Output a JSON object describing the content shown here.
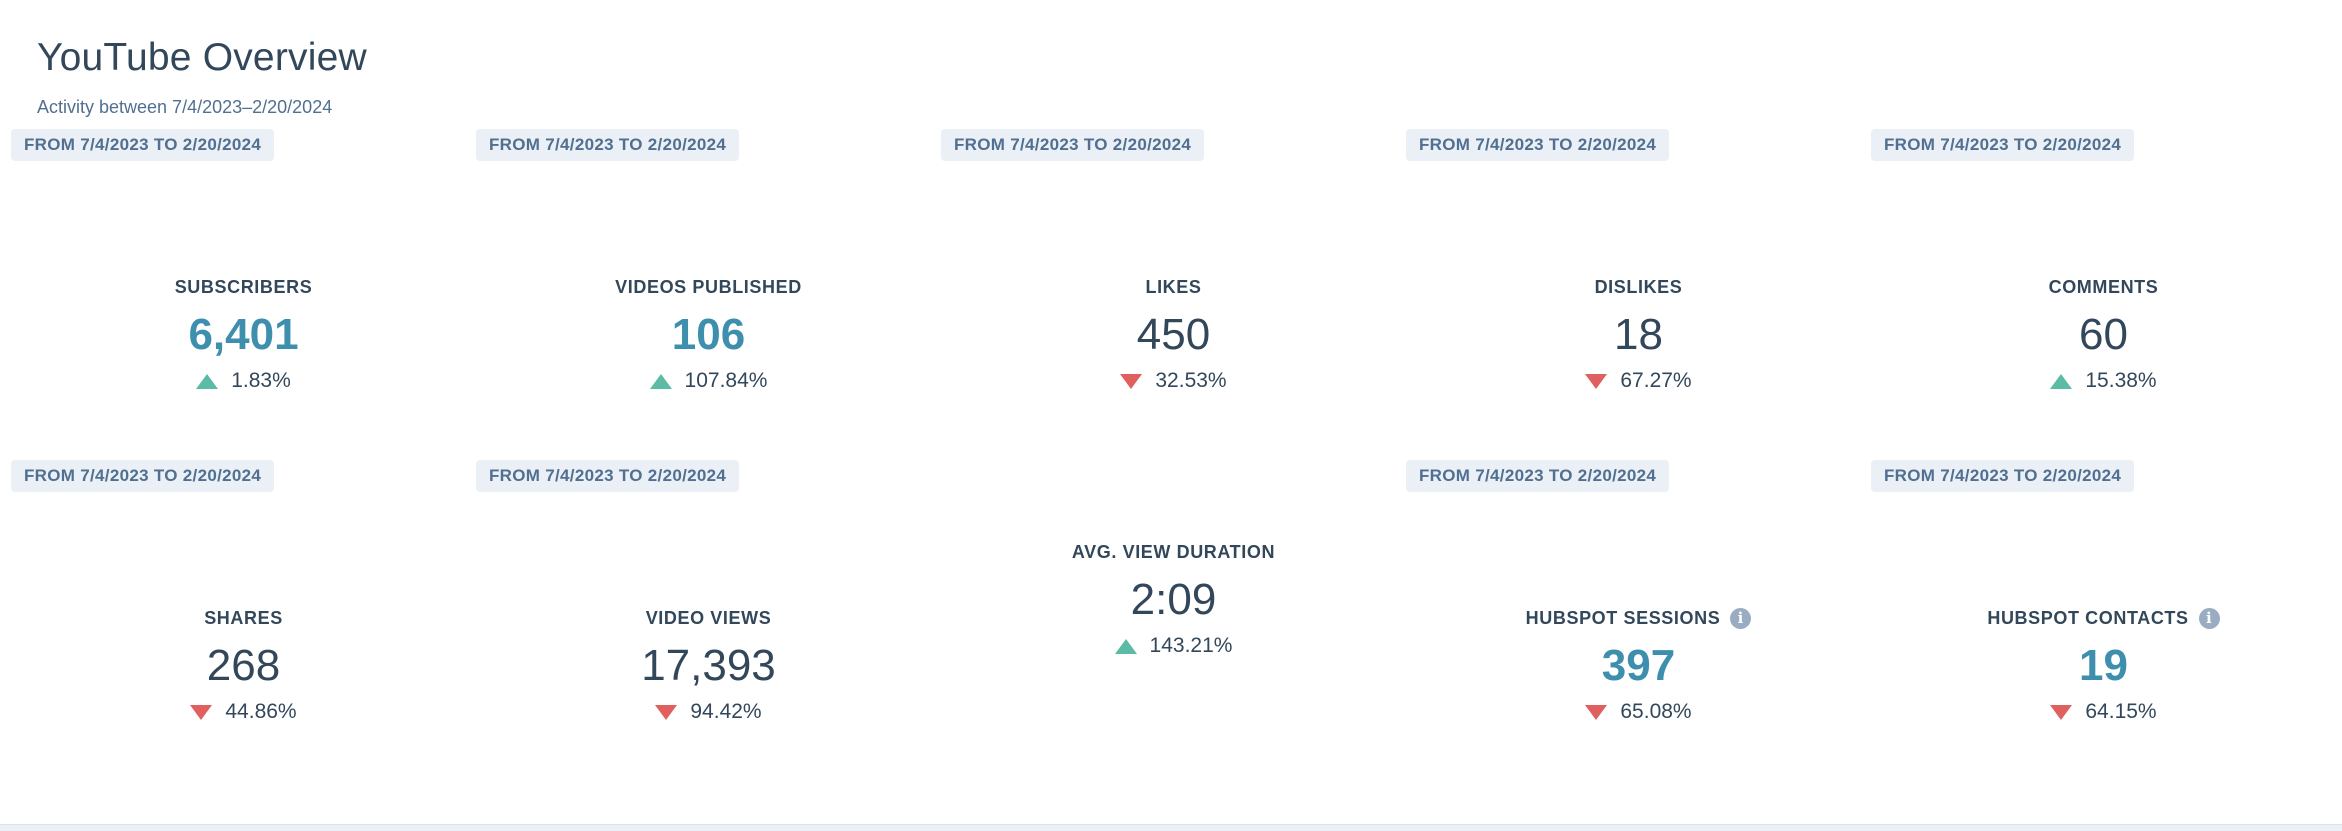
{
  "header": {
    "title": "YouTube Overview",
    "subtitle": "Activity between 7/4/2023–2/20/2024"
  },
  "colors": {
    "text": "#33475b",
    "accent_value": "#3e8fae",
    "badge_bg": "#eaf0f6",
    "badge_text": "#516f90",
    "up": "#5cbba4",
    "down": "#e0605f",
    "info_icon": "#99acc2"
  },
  "metrics": [
    {
      "badge": "FROM 7/4/2023 TO 2/20/2024",
      "label": "SUBSCRIBERS",
      "value": "6,401",
      "change": "1.83%",
      "direction": "up",
      "accent": true,
      "info": false
    },
    {
      "badge": "FROM 7/4/2023 TO 2/20/2024",
      "label": "VIDEOS PUBLISHED",
      "value": "106",
      "change": "107.84%",
      "direction": "up",
      "accent": true,
      "info": false
    },
    {
      "badge": "FROM 7/4/2023 TO 2/20/2024",
      "label": "LIKES",
      "value": "450",
      "change": "32.53%",
      "direction": "down",
      "accent": false,
      "info": false
    },
    {
      "badge": "FROM 7/4/2023 TO 2/20/2024",
      "label": "DISLIKES",
      "value": "18",
      "change": "67.27%",
      "direction": "down",
      "accent": false,
      "info": false
    },
    {
      "badge": "FROM 7/4/2023 TO 2/20/2024",
      "label": "COMMENTS",
      "value": "60",
      "change": "15.38%",
      "direction": "up",
      "accent": false,
      "info": false
    },
    {
      "badge": "FROM 7/4/2023 TO 2/20/2024",
      "label": "SHARES",
      "value": "268",
      "change": "44.86%",
      "direction": "down",
      "accent": false,
      "info": false
    },
    {
      "badge": "FROM 7/4/2023 TO 2/20/2024",
      "label": "VIDEO VIEWS",
      "value": "17,393",
      "change": "94.42%",
      "direction": "down",
      "accent": false,
      "info": false
    },
    {
      "badge": null,
      "label": "AVG. VIEW DURATION",
      "value": "2:09",
      "change": "143.21%",
      "direction": "up",
      "accent": false,
      "info": false
    },
    {
      "badge": "FROM 7/4/2023 TO 2/20/2024",
      "label": "HUBSPOT SESSIONS",
      "value": "397",
      "change": "65.08%",
      "direction": "down",
      "accent": true,
      "info": true,
      "info_glyph": "i"
    },
    {
      "badge": "FROM 7/4/2023 TO 2/20/2024",
      "label": "HUBSPOT CONTACTS",
      "value": "19",
      "change": "64.15%",
      "direction": "down",
      "accent": true,
      "info": true,
      "info_glyph": "i"
    }
  ]
}
